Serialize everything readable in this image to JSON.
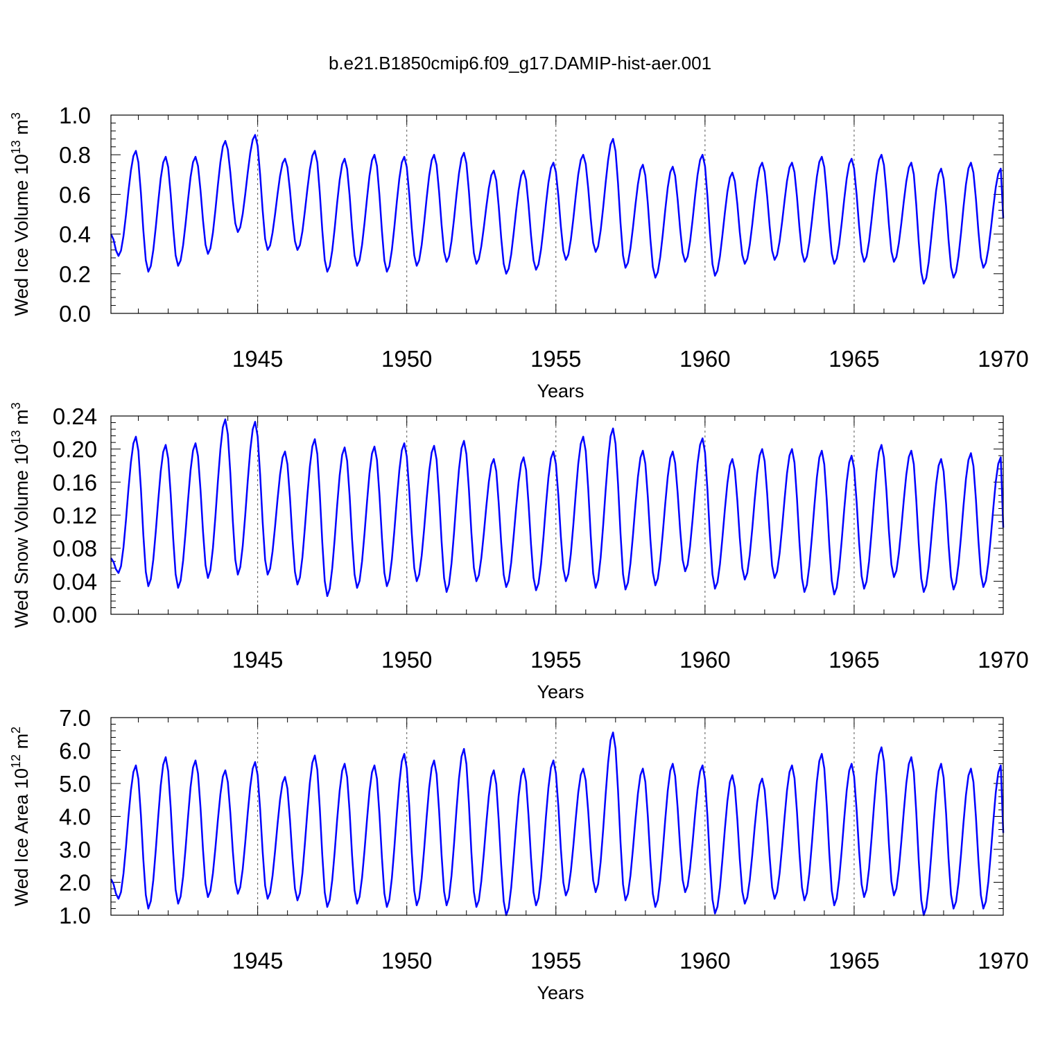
{
  "title": "b.e21.B1850cmip6.f09_g17.DAMIP-hist-aer.001",
  "colors": {
    "line": "#0000ff",
    "axis": "#000000",
    "refline": "#555555"
  },
  "chart_data": [
    {
      "type": "line",
      "ylabel": "Wed Ice Volume 10",
      "ylabel_sup": "13",
      "ylabel_unit": "m",
      "ylabel_unit_sup": "3",
      "xlabel": "Years",
      "xlim": [
        1940.08,
        1970.0
      ],
      "ylim": [
        0.0,
        1.0
      ],
      "x_ticks": [
        1945,
        1950,
        1955,
        1960,
        1965,
        1970
      ],
      "x_tick_labels": [
        "1945",
        "1950",
        "1955",
        "1960",
        "1965",
        "1970"
      ],
      "y_ticks": [
        0.0,
        0.2,
        0.4,
        0.6,
        0.8,
        1.0
      ],
      "y_tick_labels": [
        "0.0",
        "0.2",
        "0.4",
        "0.6",
        "0.8",
        "1.0"
      ],
      "reference_lines_x": [
        1945,
        1950,
        1955,
        1960,
        1965
      ],
      "monthly_series": {
        "start_year": 1940,
        "peak_month": 10,
        "min_month": 3,
        "annual_max": [
          0.82,
          0.79,
          0.79,
          0.87,
          0.9,
          0.78,
          0.82,
          0.78,
          0.8,
          0.79,
          0.8,
          0.81,
          0.72,
          0.72,
          0.76,
          0.8,
          0.88,
          0.75,
          0.74,
          0.8,
          0.71,
          0.76,
          0.76,
          0.79,
          0.78,
          0.8,
          0.76,
          0.73,
          0.76,
          0.73
        ],
        "annual_min": [
          0.29,
          0.21,
          0.24,
          0.3,
          0.41,
          0.32,
          0.32,
          0.21,
          0.24,
          0.21,
          0.24,
          0.26,
          0.25,
          0.2,
          0.22,
          0.27,
          0.31,
          0.23,
          0.18,
          0.26,
          0.19,
          0.25,
          0.27,
          0.26,
          0.25,
          0.26,
          0.26,
          0.15,
          0.18,
          0.23
        ],
        "start_value": 0.4,
        "end_value": 0.48
      }
    },
    {
      "type": "line",
      "ylabel": "Wed Snow Volume 10",
      "ylabel_sup": "13",
      "ylabel_unit": "m",
      "ylabel_unit_sup": "3",
      "xlabel": "Years",
      "xlim": [
        1940.08,
        1970.0
      ],
      "ylim": [
        0.0,
        0.24
      ],
      "x_ticks": [
        1945,
        1950,
        1955,
        1960,
        1965,
        1970
      ],
      "x_tick_labels": [
        "1945",
        "1950",
        "1955",
        "1960",
        "1965",
        "1970"
      ],
      "y_ticks": [
        0.0,
        0.04,
        0.08,
        0.12,
        0.16,
        0.2,
        0.24
      ],
      "y_tick_labels": [
        "0.00",
        "0.04",
        "0.08",
        "0.12",
        "0.16",
        "0.20",
        "0.24"
      ],
      "reference_lines_x": [
        1945,
        1950,
        1955,
        1960,
        1965
      ],
      "monthly_series": {
        "start_year": 1940,
        "peak_month": 10,
        "min_month": 3,
        "annual_max": [
          0.215,
          0.205,
          0.207,
          0.236,
          0.233,
          0.197,
          0.212,
          0.202,
          0.203,
          0.207,
          0.204,
          0.21,
          0.188,
          0.19,
          0.197,
          0.215,
          0.225,
          0.198,
          0.197,
          0.213,
          0.188,
          0.2,
          0.2,
          0.198,
          0.192,
          0.205,
          0.198,
          0.188,
          0.195,
          0.19
        ],
        "annual_min": [
          0.05,
          0.034,
          0.032,
          0.044,
          0.048,
          0.048,
          0.036,
          0.022,
          0.032,
          0.034,
          0.04,
          0.027,
          0.04,
          0.033,
          0.029,
          0.04,
          0.032,
          0.03,
          0.035,
          0.052,
          0.031,
          0.042,
          0.044,
          0.027,
          0.024,
          0.031,
          0.045,
          0.027,
          0.03,
          0.033
        ],
        "start_value": 0.068,
        "end_value": 0.105
      }
    },
    {
      "type": "line",
      "ylabel": "Wed Ice Area 10",
      "ylabel_sup": "12",
      "ylabel_unit": "m",
      "ylabel_unit_sup": "2",
      "xlabel": "Years",
      "xlim": [
        1940.08,
        1970.0
      ],
      "ylim": [
        1.0,
        7.0
      ],
      "x_ticks": [
        1945,
        1950,
        1955,
        1960,
        1965,
        1970
      ],
      "x_tick_labels": [
        "1945",
        "1950",
        "1955",
        "1960",
        "1965",
        "1970"
      ],
      "y_ticks": [
        1.0,
        2.0,
        3.0,
        4.0,
        5.0,
        6.0,
        7.0
      ],
      "y_tick_labels": [
        "1.0",
        "2.0",
        "3.0",
        "4.0",
        "5.0",
        "6.0",
        "7.0"
      ],
      "reference_lines_x": [
        1945,
        1950,
        1955,
        1960,
        1965
      ],
      "monthly_series": {
        "start_year": 1940,
        "peak_month": 10,
        "min_month": 3,
        "annual_max": [
          5.55,
          5.8,
          5.7,
          5.4,
          5.65,
          5.2,
          5.85,
          5.6,
          5.55,
          5.9,
          5.7,
          6.05,
          5.4,
          5.45,
          5.7,
          5.45,
          6.55,
          5.45,
          5.6,
          5.55,
          5.25,
          5.15,
          5.55,
          5.9,
          5.6,
          6.1,
          5.8,
          5.6,
          5.45,
          5.55
        ],
        "annual_min": [
          1.5,
          1.2,
          1.35,
          1.55,
          1.65,
          1.5,
          1.45,
          1.25,
          1.35,
          1.25,
          1.3,
          1.3,
          1.25,
          1.0,
          1.3,
          1.6,
          1.7,
          1.45,
          1.25,
          1.7,
          1.05,
          1.35,
          1.5,
          1.45,
          1.3,
          1.55,
          1.6,
          1.0,
          1.2,
          1.2
        ],
        "start_value": 2.1,
        "end_value": 3.5
      }
    }
  ]
}
